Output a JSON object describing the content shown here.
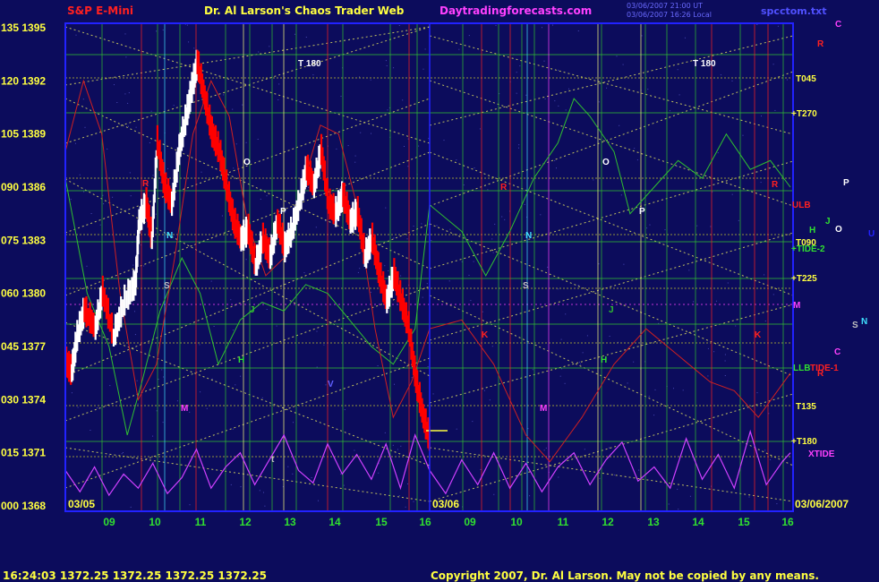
{
  "header": {
    "symbol": "S&P E-Mini",
    "title": "Dr. Al Larson's Chaos Trader Web",
    "website": "Daytradingforecasts.com",
    "stamp1": "03/06/2007 21:00 UT",
    "stamp2": "03/06/2007 16:26 Local",
    "file": "spcctom.txt"
  },
  "footer": {
    "quote": "16:24:03  1372.25  1372.25  1372.25  1372.25",
    "copyright": "Copyright 2007, Dr. Al Larson. May not be copied by any means."
  },
  "colors": {
    "background": "#0c0c5c",
    "price_up": "#ffffff",
    "price_down": "#ff0000",
    "axis": "#2222ff"
  },
  "chart_data": {
    "type": "line",
    "title": "S&P E-Mini",
    "x_session1_date": "03/05",
    "x_session2_date": "03/06",
    "x_end_date": "03/06/2007",
    "x_ticks_session1": [
      "09",
      "10",
      "11",
      "12",
      "13",
      "14",
      "15",
      "16"
    ],
    "x_ticks_session2": [
      "09",
      "10",
      "11",
      "12",
      "13",
      "14",
      "15",
      "16"
    ],
    "y_ticks": [
      {
        "code": "135",
        "price": "1395"
      },
      {
        "code": "120",
        "price": "1392"
      },
      {
        "code": "105",
        "price": "1389"
      },
      {
        "code": "090",
        "price": "1386"
      },
      {
        "code": "075",
        "price": "1383"
      },
      {
        "code": "060",
        "price": "1380"
      },
      {
        "code": "045",
        "price": "1377"
      },
      {
        "code": "030",
        "price": "1374"
      },
      {
        "code": "015",
        "price": "1371"
      },
      {
        "code": "000",
        "price": "1368"
      }
    ],
    "ylim": [
      1368,
      1395
    ],
    "price_series": [
      {
        "t": 0.0,
        "p": 1376.0
      },
      {
        "t": 0.15,
        "p": 1375.5
      },
      {
        "t": 0.3,
        "p": 1377.5
      },
      {
        "t": 0.5,
        "p": 1379.0
      },
      {
        "t": 0.8,
        "p": 1378.0
      },
      {
        "t": 1.0,
        "p": 1380.0
      },
      {
        "t": 1.3,
        "p": 1377.5
      },
      {
        "t": 1.6,
        "p": 1379.5
      },
      {
        "t": 1.9,
        "p": 1380.5
      },
      {
        "t": 2.0,
        "p": 1384.0
      },
      {
        "t": 2.2,
        "p": 1385.0
      },
      {
        "t": 2.35,
        "p": 1383.0
      },
      {
        "t": 2.5,
        "p": 1388.5
      },
      {
        "t": 2.7,
        "p": 1386.0
      },
      {
        "t": 2.9,
        "p": 1385.0
      },
      {
        "t": 3.1,
        "p": 1388.0
      },
      {
        "t": 3.3,
        "p": 1390.0
      },
      {
        "t": 3.45,
        "p": 1391.5
      },
      {
        "t": 3.6,
        "p": 1393.0
      },
      {
        "t": 3.8,
        "p": 1391.0
      },
      {
        "t": 4.0,
        "p": 1389.0
      },
      {
        "t": 4.2,
        "p": 1388.0
      },
      {
        "t": 4.4,
        "p": 1386.0
      },
      {
        "t": 4.6,
        "p": 1384.0
      },
      {
        "t": 4.8,
        "p": 1383.0
      },
      {
        "t": 5.0,
        "p": 1383.5
      },
      {
        "t": 5.2,
        "p": 1381.5
      },
      {
        "t": 5.4,
        "p": 1383.0
      },
      {
        "t": 5.6,
        "p": 1382.0
      },
      {
        "t": 5.8,
        "p": 1384.0
      },
      {
        "t": 6.0,
        "p": 1382.5
      },
      {
        "t": 6.2,
        "p": 1383.5
      },
      {
        "t": 6.45,
        "p": 1385.5
      },
      {
        "t": 6.6,
        "p": 1387.0
      },
      {
        "t": 6.8,
        "p": 1386.0
      },
      {
        "t": 7.0,
        "p": 1388.0
      },
      {
        "t": 7.2,
        "p": 1385.0
      },
      {
        "t": 7.4,
        "p": 1384.5
      },
      {
        "t": 7.6,
        "p": 1385.5
      },
      {
        "t": 7.8,
        "p": 1384.0
      },
      {
        "t": 8.0,
        "p": 1384.5
      },
      {
        "t": 8.2,
        "p": 1382.0
      },
      {
        "t": 8.4,
        "p": 1383.0
      },
      {
        "t": 8.6,
        "p": 1381.0
      },
      {
        "t": 8.8,
        "p": 1379.5
      },
      {
        "t": 9.0,
        "p": 1381.0
      },
      {
        "t": 9.2,
        "p": 1379.5
      },
      {
        "t": 9.4,
        "p": 1378.0
      },
      {
        "t": 9.6,
        "p": 1375.0
      },
      {
        "t": 9.8,
        "p": 1373.0
      },
      {
        "t": 10.0,
        "p": 1371.5
      }
    ],
    "last_price": 1372.25,
    "green_series": [
      {
        "t": 0.0,
        "p": 1386.5
      },
      {
        "t": 0.6,
        "p": 1380.0
      },
      {
        "t": 1.2,
        "p": 1377.0
      },
      {
        "t": 1.7,
        "p": 1372.0
      },
      {
        "t": 2.1,
        "p": 1375.0
      },
      {
        "t": 2.6,
        "p": 1379.0
      },
      {
        "t": 3.2,
        "p": 1382.0
      },
      {
        "t": 3.7,
        "p": 1380.0
      },
      {
        "t": 4.2,
        "p": 1376.0
      },
      {
        "t": 4.8,
        "p": 1378.5
      },
      {
        "t": 5.4,
        "p": 1379.5
      },
      {
        "t": 6.0,
        "p": 1379.0
      },
      {
        "t": 6.6,
        "p": 1380.5
      },
      {
        "t": 7.2,
        "p": 1380.0
      },
      {
        "t": 7.8,
        "p": 1378.5
      },
      {
        "t": 8.4,
        "p": 1377.0
      },
      {
        "t": 9.0,
        "p": 1376.0
      },
      {
        "t": 9.6,
        "p": 1378.0
      },
      {
        "t": 10.0,
        "p": 1385.0
      },
      {
        "t": 10.8,
        "p": 1383.5
      },
      {
        "t": 11.4,
        "p": 1381.0
      },
      {
        "t": 12.0,
        "p": 1383.5
      },
      {
        "t": 12.6,
        "p": 1386.5
      },
      {
        "t": 13.2,
        "p": 1388.5
      },
      {
        "t": 13.6,
        "p": 1391.0
      },
      {
        "t": 14.0,
        "p": 1390.0
      },
      {
        "t": 14.6,
        "p": 1388.0
      },
      {
        "t": 15.0,
        "p": 1384.5
      },
      {
        "t": 15.6,
        "p": 1386.0
      },
      {
        "t": 16.2,
        "p": 1387.5
      },
      {
        "t": 16.8,
        "p": 1386.5
      },
      {
        "t": 17.4,
        "p": 1389.0
      },
      {
        "t": 18.0,
        "p": 1387.0
      },
      {
        "t": 18.5,
        "p": 1387.5
      },
      {
        "t": 19.0,
        "p": 1386.0
      }
    ],
    "red_series": [
      {
        "t": 0.0,
        "p": 1388.0
      },
      {
        "t": 0.5,
        "p": 1392.0
      },
      {
        "t": 1.0,
        "p": 1389.0
      },
      {
        "t": 1.5,
        "p": 1380.0
      },
      {
        "t": 2.0,
        "p": 1374.0
      },
      {
        "t": 2.5,
        "p": 1376.0
      },
      {
        "t": 3.0,
        "p": 1382.0
      },
      {
        "t": 3.5,
        "p": 1389.0
      },
      {
        "t": 4.0,
        "p": 1392.0
      },
      {
        "t": 4.5,
        "p": 1390.0
      },
      {
        "t": 5.0,
        "p": 1384.0
      },
      {
        "t": 5.5,
        "p": 1381.0
      },
      {
        "t": 6.0,
        "p": 1382.0
      },
      {
        "t": 6.5,
        "p": 1386.0
      },
      {
        "t": 7.0,
        "p": 1389.5
      },
      {
        "t": 7.5,
        "p": 1389.0
      },
      {
        "t": 8.0,
        "p": 1385.0
      },
      {
        "t": 8.5,
        "p": 1378.0
      },
      {
        "t": 9.0,
        "p": 1373.0
      },
      {
        "t": 9.5,
        "p": 1375.0
      },
      {
        "t": 10.0,
        "p": 1378.0
      },
      {
        "t": 10.8,
        "p": 1378.5
      },
      {
        "t": 11.6,
        "p": 1376.0
      },
      {
        "t": 12.4,
        "p": 1372.0
      },
      {
        "t": 13.0,
        "p": 1370.5
      },
      {
        "t": 13.8,
        "p": 1373.0
      },
      {
        "t": 14.6,
        "p": 1376.0
      },
      {
        "t": 15.4,
        "p": 1378.0
      },
      {
        "t": 16.2,
        "p": 1376.5
      },
      {
        "t": 17.0,
        "p": 1375.0
      },
      {
        "t": 17.6,
        "p": 1374.5
      },
      {
        "t": 18.2,
        "p": 1373.0
      },
      {
        "t": 19.0,
        "p": 1375.5
      }
    ],
    "magenta_series": [
      {
        "t": 0.0,
        "p": 1370.0
      },
      {
        "t": 0.4,
        "p": 1368.8
      },
      {
        "t": 0.8,
        "p": 1370.2
      },
      {
        "t": 1.2,
        "p": 1368.6
      },
      {
        "t": 1.6,
        "p": 1369.8
      },
      {
        "t": 2.0,
        "p": 1369.0
      },
      {
        "t": 2.4,
        "p": 1370.4
      },
      {
        "t": 2.8,
        "p": 1368.7
      },
      {
        "t": 3.2,
        "p": 1369.6
      },
      {
        "t": 3.6,
        "p": 1371.2
      },
      {
        "t": 4.0,
        "p": 1369.0
      },
      {
        "t": 4.4,
        "p": 1370.2
      },
      {
        "t": 4.8,
        "p": 1371.0
      },
      {
        "t": 5.2,
        "p": 1369.2
      },
      {
        "t": 5.6,
        "p": 1370.6
      },
      {
        "t": 6.0,
        "p": 1372.0
      },
      {
        "t": 6.4,
        "p": 1370.0
      },
      {
        "t": 6.8,
        "p": 1369.3
      },
      {
        "t": 7.2,
        "p": 1371.5
      },
      {
        "t": 7.6,
        "p": 1369.8
      },
      {
        "t": 8.0,
        "p": 1370.9
      },
      {
        "t": 8.4,
        "p": 1369.5
      },
      {
        "t": 8.8,
        "p": 1371.5
      },
      {
        "t": 9.2,
        "p": 1369.0
      },
      {
        "t": 9.6,
        "p": 1372.0
      },
      {
        "t": 10.0,
        "p": 1370.0
      },
      {
        "t": 10.4,
        "p": 1368.7
      },
      {
        "t": 10.8,
        "p": 1370.6
      },
      {
        "t": 11.2,
        "p": 1369.2
      },
      {
        "t": 11.6,
        "p": 1371.0
      },
      {
        "t": 12.0,
        "p": 1369.0
      },
      {
        "t": 12.4,
        "p": 1370.4
      },
      {
        "t": 12.8,
        "p": 1368.8
      },
      {
        "t": 13.2,
        "p": 1370.2
      },
      {
        "t": 13.6,
        "p": 1371.0
      },
      {
        "t": 14.0,
        "p": 1369.2
      },
      {
        "t": 14.4,
        "p": 1370.6
      },
      {
        "t": 14.8,
        "p": 1371.6
      },
      {
        "t": 15.2,
        "p": 1369.4
      },
      {
        "t": 15.6,
        "p": 1370.2
      },
      {
        "t": 16.0,
        "p": 1369.0
      },
      {
        "t": 16.4,
        "p": 1371.8
      },
      {
        "t": 16.8,
        "p": 1369.5
      },
      {
        "t": 17.2,
        "p": 1370.9
      },
      {
        "t": 17.6,
        "p": 1369.0
      },
      {
        "t": 18.0,
        "p": 1372.2
      },
      {
        "t": 18.4,
        "p": 1369.2
      },
      {
        "t": 18.8,
        "p": 1370.5
      },
      {
        "t": 19.0,
        "p": 1371.0
      }
    ],
    "cycle_labels": [
      "T 180",
      "T 180",
      "O",
      "O",
      "P",
      "P",
      "N",
      "N",
      "S",
      "S",
      "M",
      "M",
      "H",
      "H",
      "V",
      "R",
      "R",
      "J",
      "J",
      "R",
      "K",
      "K",
      "t"
    ],
    "right_labels": [
      "C",
      "R",
      "T045",
      "+T270",
      "ULB",
      "P",
      "H",
      "J",
      "O",
      "U",
      "T090",
      "+TIDE-2",
      "+T225",
      "M",
      "S",
      "N",
      "C",
      "LLB",
      "TIDE-1",
      "R",
      "T135",
      "+T180",
      "XTIDE"
    ],
    "grid": true
  }
}
